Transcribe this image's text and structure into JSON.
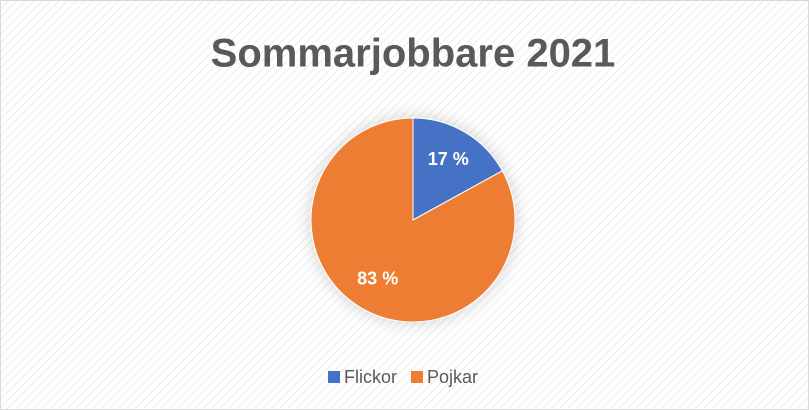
{
  "chart_data": {
    "type": "pie",
    "title": "Sommarjobbare 2021",
    "categories": [
      "Flickor",
      "Pojkar"
    ],
    "values": [
      17,
      83
    ],
    "value_labels": [
      "17 %",
      "83 %"
    ],
    "colors": [
      "#4472c4",
      "#ed7d31"
    ],
    "legend": "bottom"
  }
}
